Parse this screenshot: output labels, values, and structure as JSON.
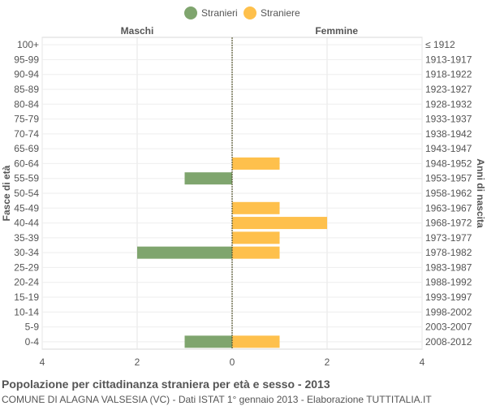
{
  "chart_data": {
    "type": "bar",
    "orientation": "horizontal",
    "title": "Popolazione per cittadinanza straniera per età e sesso - 2013",
    "subtitle": "COMUNE DI ALAGNA VALSESIA (VC) - Dati ISTAT 1° gennaio 2013 - Elaborazione TUTTITALIA.IT",
    "left_header": "Maschi",
    "right_header": "Femmine",
    "ylabel_left": "Fasce di età",
    "ylabel_right": "Anni di nascita",
    "xlim": [
      -4,
      4
    ],
    "xticks": [
      -4,
      -2,
      0,
      2,
      4
    ],
    "xtick_labels": [
      "4",
      "2",
      "0",
      "2",
      "4"
    ],
    "grid": true,
    "legend_position": "top-center",
    "categories": [
      "100+",
      "95-99",
      "90-94",
      "85-89",
      "80-84",
      "75-79",
      "70-74",
      "65-69",
      "60-64",
      "55-59",
      "50-54",
      "45-49",
      "40-44",
      "35-39",
      "30-34",
      "25-29",
      "20-24",
      "15-19",
      "10-14",
      "5-9",
      "0-4"
    ],
    "birth_years": [
      "≤ 1912",
      "1913-1917",
      "1918-1922",
      "1923-1927",
      "1928-1932",
      "1933-1937",
      "1938-1942",
      "1943-1947",
      "1948-1952",
      "1953-1957",
      "1958-1962",
      "1963-1967",
      "1968-1972",
      "1973-1977",
      "1978-1982",
      "1983-1987",
      "1988-1992",
      "1993-1997",
      "1998-2002",
      "2003-2007",
      "2008-2012"
    ],
    "series": [
      {
        "name": "Stranieri",
        "color": "#7fa56e",
        "side": "left",
        "values": [
          0,
          0,
          0,
          0,
          0,
          0,
          0,
          0,
          0,
          1,
          0,
          0,
          0,
          0,
          2,
          0,
          0,
          0,
          0,
          0,
          1
        ]
      },
      {
        "name": "Straniere",
        "color": "#fec04c",
        "side": "right",
        "values": [
          0,
          0,
          0,
          0,
          0,
          0,
          0,
          0,
          1,
          0,
          0,
          1,
          2,
          1,
          1,
          0,
          0,
          0,
          0,
          0,
          1
        ]
      }
    ]
  }
}
